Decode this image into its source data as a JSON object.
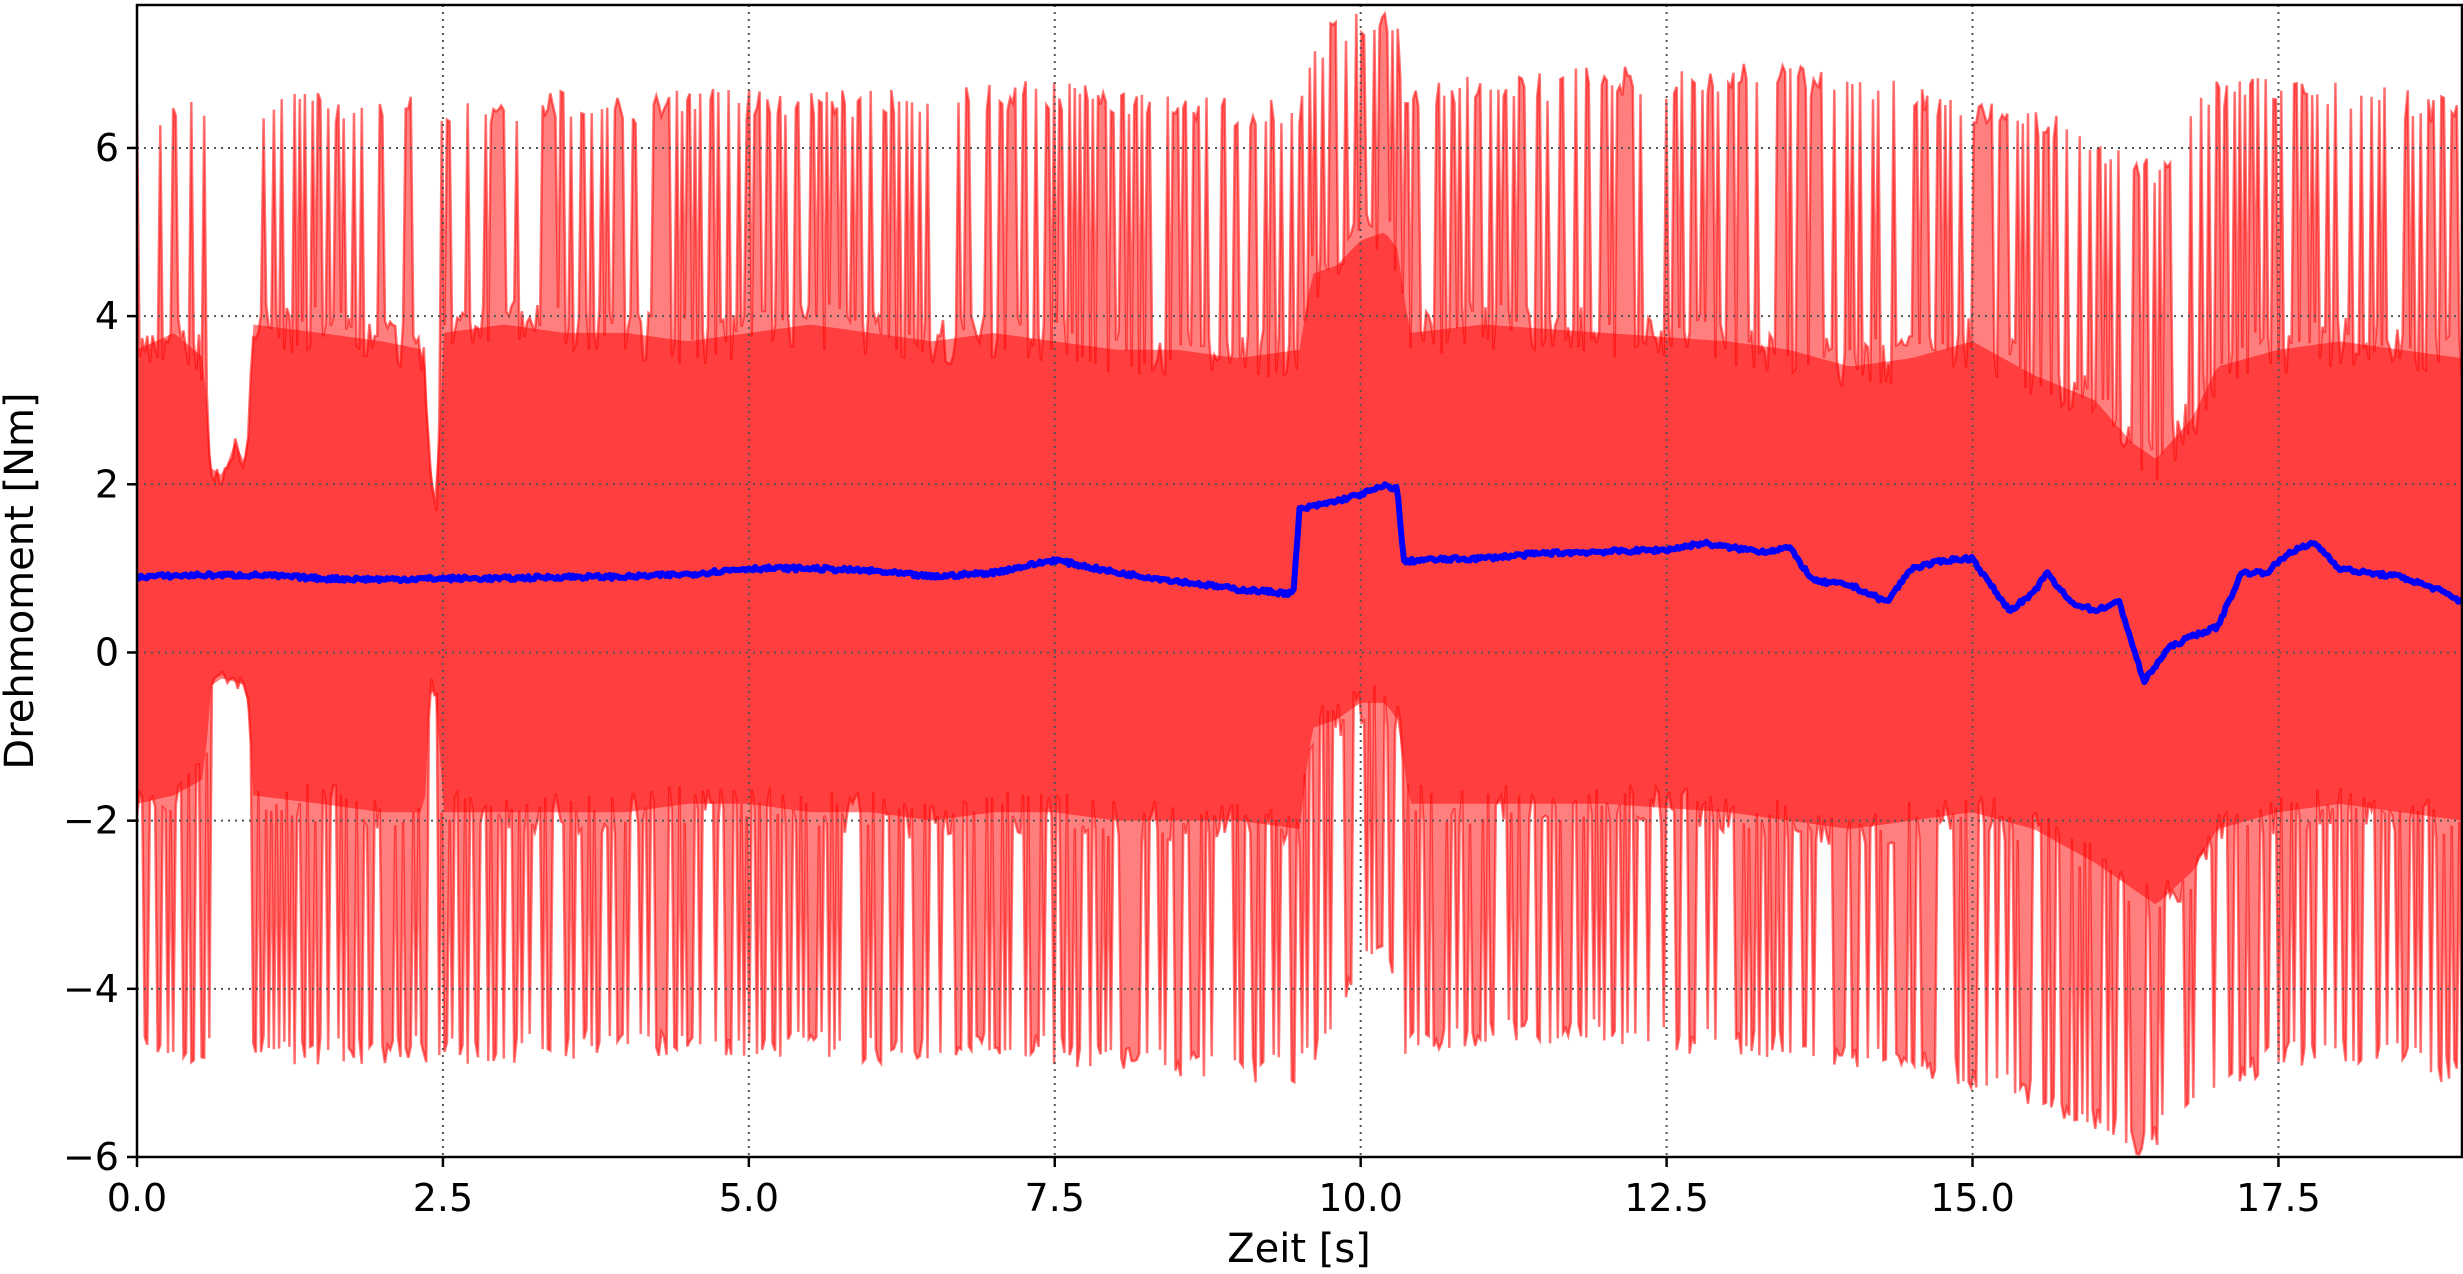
{
  "chart_data": {
    "type": "line",
    "title": "",
    "xlabel": "Zeit [s]",
    "ylabel": "Drehmoment [Nm]",
    "xlim": [
      0.0,
      19.0
    ],
    "ylim": [
      -6.0,
      7.7
    ],
    "grid": true,
    "x_ticks": [
      "0.0",
      "2.5",
      "5.0",
      "7.5",
      "10.0",
      "12.5",
      "15.0",
      "17.5"
    ],
    "y_ticks": [
      "−6",
      "−4",
      "−2",
      "0",
      "2",
      "4",
      "6"
    ],
    "colors": {
      "mean_line": "#0000ff",
      "band": "#ff0000",
      "band_alpha": 0.5
    },
    "series": [
      {
        "x": [
          0.0,
          0.5,
          1.0,
          1.5,
          2.0,
          2.5,
          3.0,
          3.5,
          4.0,
          4.5,
          5.0,
          5.5,
          6.0,
          6.5,
          7.0,
          7.5,
          8.0,
          8.5,
          9.0,
          9.45,
          9.5,
          9.8,
          10.0,
          10.2,
          10.3,
          10.35,
          10.5,
          11.0,
          11.5,
          12.0,
          12.5,
          12.8,
          13.0,
          13.3,
          13.5,
          13.7,
          14.0,
          14.3,
          14.5,
          14.8,
          15.0,
          15.1,
          15.3,
          15.5,
          15.6,
          15.8,
          16.0,
          16.2,
          16.4,
          16.6,
          16.8,
          17.0,
          17.2,
          17.4,
          17.6,
          17.8,
          18.0,
          18.2,
          18.5,
          18.8,
          19.0
        ],
        "values": [
          0.9,
          0.92,
          0.92,
          0.88,
          0.87,
          0.88,
          0.88,
          0.9,
          0.9,
          0.93,
          1.0,
          1.0,
          0.97,
          0.9,
          0.95,
          1.1,
          0.95,
          0.85,
          0.75,
          0.7,
          1.7,
          1.8,
          1.88,
          1.98,
          1.95,
          1.08,
          1.1,
          1.12,
          1.18,
          1.2,
          1.22,
          1.3,
          1.25,
          1.2,
          1.25,
          0.85,
          0.8,
          0.6,
          1.0,
          1.1,
          1.12,
          0.9,
          0.5,
          0.7,
          0.95,
          0.6,
          0.5,
          0.6,
          -0.35,
          0.05,
          0.2,
          0.3,
          0.95,
          0.95,
          1.2,
          1.3,
          1.0,
          0.95,
          0.9,
          0.75,
          0.6
        ]
      },
      {
        "x": [
          0.0,
          0.3,
          0.55,
          0.6,
          0.7,
          0.8,
          0.9,
          0.95,
          1.5,
          2.0,
          2.35,
          2.4,
          2.45,
          2.5,
          3.0,
          3.5,
          4.0,
          4.5,
          5.0,
          5.5,
          6.0,
          6.5,
          7.0,
          7.5,
          8.0,
          8.5,
          9.0,
          9.5,
          9.6,
          9.8,
          10.0,
          10.2,
          10.3,
          10.4,
          11.0,
          12.0,
          13.0,
          13.5,
          14.0,
          14.5,
          15.0,
          15.5,
          16.0,
          16.3,
          16.5,
          16.8,
          17.0,
          17.5,
          18.0,
          18.5,
          19.0
        ],
        "values": [
          3.6,
          3.8,
          3.5,
          2.2,
          2.1,
          2.5,
          2.2,
          3.9,
          3.8,
          3.7,
          3.6,
          2.1,
          1.8,
          3.8,
          3.9,
          3.8,
          3.8,
          3.7,
          3.8,
          3.9,
          3.8,
          3.7,
          3.8,
          3.7,
          3.6,
          3.6,
          3.5,
          3.6,
          4.5,
          4.6,
          4.9,
          5.0,
          4.8,
          3.8,
          3.9,
          3.8,
          3.7,
          3.6,
          3.4,
          3.5,
          3.7,
          3.3,
          3.0,
          2.5,
          2.3,
          2.8,
          3.4,
          3.6,
          3.7,
          3.6,
          3.5
        ]
      },
      {
        "x": [
          0.0,
          0.3,
          0.55,
          0.6,
          0.7,
          0.8,
          0.9,
          0.95,
          1.5,
          2.0,
          2.35,
          2.4,
          2.45,
          2.5,
          3.0,
          3.5,
          4.0,
          4.5,
          5.0,
          5.5,
          6.0,
          6.5,
          7.0,
          7.5,
          8.0,
          8.5,
          9.0,
          9.5,
          9.6,
          9.8,
          10.0,
          10.2,
          10.3,
          10.4,
          11.0,
          12.0,
          13.0,
          13.5,
          14.0,
          14.5,
          15.0,
          15.5,
          16.0,
          16.3,
          16.5,
          16.8,
          17.0,
          17.5,
          18.0,
          18.5,
          19.0
        ],
        "values": [
          -1.8,
          -1.7,
          -1.5,
          -0.4,
          -0.3,
          -0.35,
          -0.4,
          -1.7,
          -1.8,
          -1.9,
          -1.9,
          -0.3,
          -0.55,
          -1.9,
          -1.9,
          -1.9,
          -1.9,
          -1.8,
          -1.8,
          -1.9,
          -1.9,
          -2.0,
          -1.9,
          -1.9,
          -2.0,
          -2.0,
          -2.0,
          -2.1,
          -0.9,
          -0.8,
          -0.6,
          -0.6,
          -0.8,
          -1.8,
          -1.8,
          -1.8,
          -1.9,
          -2.0,
          -2.1,
          -2.0,
          -1.9,
          -2.1,
          -2.5,
          -2.8,
          -3.0,
          -2.6,
          -2.1,
          -1.9,
          -1.8,
          -1.9,
          -2.0
        ]
      },
      {
        "x": [
          0.0,
          0.3,
          0.6,
          0.9,
          1.0,
          1.5,
          2.0,
          2.3,
          2.45,
          2.5,
          3.0,
          3.5,
          4.0,
          4.5,
          5.0,
          5.5,
          6.0,
          6.5,
          7.0,
          7.5,
          8.0,
          8.5,
          9.0,
          9.5,
          9.55,
          9.8,
          10.0,
          10.2,
          10.3,
          10.35,
          10.5,
          11.0,
          11.5,
          12.0,
          12.5,
          13.0,
          13.5,
          14.0,
          14.5,
          15.0,
          15.5,
          16.0,
          16.3,
          16.5,
          16.8,
          17.0,
          17.5,
          18.0,
          18.5,
          19.0
        ],
        "values": [
          6.6,
          6.6,
          6.6,
          6.6,
          6.7,
          6.65,
          6.6,
          6.65,
          6.6,
          6.6,
          6.6,
          6.7,
          6.6,
          6.7,
          6.7,
          6.7,
          6.7,
          6.7,
          6.8,
          6.8,
          6.75,
          6.7,
          6.6,
          6.55,
          7.1,
          7.6,
          7.6,
          7.7,
          7.5,
          6.8,
          6.8,
          6.9,
          6.9,
          7.0,
          6.9,
          7.0,
          7.0,
          6.9,
          6.8,
          6.6,
          6.5,
          6.2,
          6.0,
          5.9,
          6.5,
          6.8,
          6.9,
          6.8,
          6.7,
          6.6
        ]
      },
      {
        "x": [
          0.0,
          0.3,
          0.6,
          0.9,
          1.0,
          1.5,
          2.0,
          2.3,
          2.45,
          2.5,
          3.0,
          3.5,
          4.0,
          4.5,
          5.0,
          5.5,
          6.0,
          6.5,
          7.0,
          7.5,
          8.0,
          8.5,
          9.0,
          9.5,
          9.55,
          9.8,
          10.0,
          10.2,
          10.3,
          10.35,
          10.5,
          11.0,
          11.5,
          12.0,
          12.5,
          13.0,
          13.5,
          14.0,
          14.5,
          15.0,
          15.5,
          16.0,
          16.3,
          16.5,
          16.8,
          17.0,
          17.5,
          18.0,
          18.5,
          19.0
        ],
        "values": [
          -4.8,
          -4.9,
          -4.9,
          -4.9,
          -4.9,
          -4.9,
          -4.9,
          -4.9,
          -4.9,
          -4.9,
          -4.9,
          -4.85,
          -4.8,
          -4.8,
          -4.8,
          -4.85,
          -4.9,
          -4.9,
          -4.85,
          -4.9,
          -5.0,
          -5.1,
          -5.1,
          -5.15,
          -5.0,
          -4.5,
          -3.9,
          -3.8,
          -3.9,
          -4.8,
          -4.8,
          -4.7,
          -4.7,
          -4.7,
          -4.8,
          -4.8,
          -4.85,
          -5.0,
          -5.0,
          -5.2,
          -5.4,
          -5.7,
          -6.0,
          -5.9,
          -5.5,
          -5.2,
          -5.0,
          -4.9,
          -5.0,
          -5.2
        ]
      }
    ]
  }
}
